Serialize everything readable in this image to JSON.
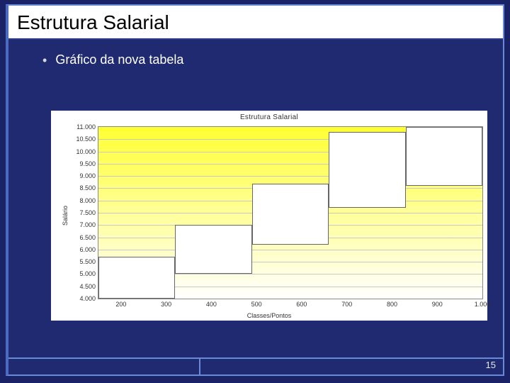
{
  "slide": {
    "title": "Estrutura Salarial",
    "bullet": "Gráfico da nova tabela",
    "page_number": "15"
  },
  "chart": {
    "type": "bar-range",
    "title": "Estrutura Salarial",
    "xlabel": "Classes/Pontos",
    "ylabel": "Salário",
    "background_gradient_top": "#ffff33",
    "background_gradient_bottom": "#ffffff",
    "grid_color": "#c8c8c8",
    "bar_fill": "#ffffff",
    "bar_border": "#666666",
    "xlim": [
      150,
      1000
    ],
    "ylim": [
      4000,
      11000
    ],
    "yticks": [
      4000,
      4500,
      5000,
      5500,
      6000,
      6500,
      7000,
      7500,
      8000,
      8500,
      9000,
      9500,
      10000,
      10500,
      11000
    ],
    "ytick_labels": [
      "4.000",
      "4.500",
      "5.000",
      "5.500",
      "6.000",
      "6.500",
      "7.000",
      "7.500",
      "8.000",
      "8.500",
      "9.000",
      "9.500",
      "10.000",
      "10.500",
      "11.000"
    ],
    "xticks": [
      200,
      300,
      400,
      500,
      600,
      700,
      800,
      900,
      1000
    ],
    "xtick_labels": [
      "200",
      "300",
      "400",
      "500",
      "600",
      "700",
      "800",
      "900",
      "1.000"
    ],
    "bars": [
      {
        "x0": 150,
        "x1": 320,
        "y0": 4000,
        "y1": 5700
      },
      {
        "x0": 320,
        "x1": 490,
        "y0": 5000,
        "y1": 7000
      },
      {
        "x0": 490,
        "x1": 660,
        "y0": 6200,
        "y1": 8700
      },
      {
        "x0": 660,
        "x1": 830,
        "y0": 7700,
        "y1": 10800
      },
      {
        "x0": 830,
        "x1": 1000,
        "y0": 8600,
        "y1": 11000
      }
    ],
    "title_fontsize": 10,
    "tick_fontsize": 9
  }
}
